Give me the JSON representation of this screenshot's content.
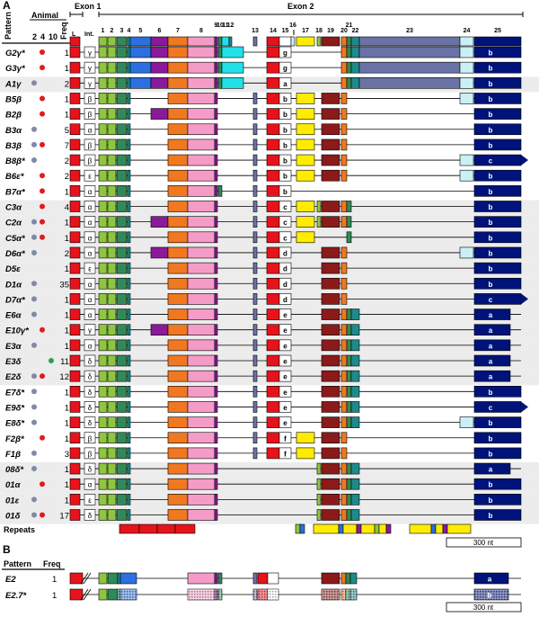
{
  "panel_a": {
    "label": "A",
    "header_pattern": "Pattern",
    "header_animal": "Animal",
    "animal_cols": [
      "2",
      "4",
      "10"
    ],
    "header_freq": "Freq",
    "exon1_label": "Exon 1",
    "exon2_label": "Exon 2",
    "sub_l": "L",
    "sub_int": "Int.",
    "exon_numbers": [
      "1",
      "2",
      "3",
      "4",
      "5",
      "6",
      "7",
      "8",
      "9",
      "10",
      "11",
      "12",
      "13",
      "14",
      "15",
      "16",
      "17",
      "18",
      "19",
      "20",
      "21",
      "22",
      "23",
      "24",
      "25"
    ],
    "repeats_label": "Repeats",
    "scale_label": "300 nt",
    "rows": [
      {
        "name": "G2",
        "suffix": "γ*",
        "animal": [
          0,
          1,
          0
        ],
        "freq": "1",
        "e1": "γ",
        "ex4": "g",
        "ex25": "b",
        "ex": [
          1,
          1,
          1,
          1,
          1,
          1,
          1,
          1,
          1,
          1,
          1,
          0,
          0,
          1,
          1,
          0,
          0,
          0,
          0,
          1,
          1,
          1,
          1,
          1,
          1
        ],
        "long": 1
      },
      {
        "name": "G3",
        "suffix": "γ*",
        "animal": [
          0,
          1,
          0
        ],
        "freq": "1",
        "e1": "γ",
        "ex4": "g",
        "ex25": "b",
        "ex": [
          1,
          1,
          1,
          1,
          1,
          1,
          1,
          1,
          1,
          1,
          1,
          0,
          0,
          1,
          1,
          0,
          0,
          0,
          0,
          1,
          1,
          1,
          1,
          1,
          1
        ],
        "long": 1
      },
      {
        "name": "A1",
        "suffix": "γ",
        "animal": [
          1,
          0,
          0
        ],
        "freq": "2",
        "e1": "γ",
        "ex4": "a",
        "ex25": "b",
        "ex": [
          1,
          1,
          1,
          1,
          1,
          1,
          1,
          1,
          1,
          1,
          1,
          0,
          0,
          1,
          1,
          0,
          0,
          0,
          0,
          1,
          1,
          1,
          1,
          1,
          1
        ],
        "long": 1
      },
      {
        "name": "B5",
        "suffix": "β",
        "animal": [
          0,
          1,
          0
        ],
        "freq": "1",
        "e1": "β",
        "ex4": "b",
        "ex25": "b",
        "ex": [
          1,
          1,
          1,
          1,
          0,
          0,
          1,
          1,
          1,
          0,
          0,
          0,
          1,
          1,
          1,
          0,
          1,
          0,
          1,
          1,
          0,
          0,
          0,
          1,
          1
        ]
      },
      {
        "name": "B2",
        "suffix": "β",
        "animal": [
          0,
          1,
          0
        ],
        "freq": "1",
        "e1": "β",
        "ex4": "b",
        "ex25": "b",
        "ex": [
          1,
          1,
          1,
          1,
          0,
          1,
          1,
          1,
          1,
          0,
          0,
          0,
          1,
          1,
          1,
          0,
          1,
          0,
          1,
          1,
          0,
          0,
          0,
          0,
          1
        ]
      },
      {
        "name": "B3",
        "suffix": "α",
        "animal": [
          1,
          0,
          0
        ],
        "freq": "5",
        "e1": "α",
        "ex4": "b",
        "ex25": "b",
        "ex": [
          1,
          1,
          1,
          1,
          0,
          0,
          1,
          1,
          1,
          0,
          0,
          0,
          1,
          1,
          1,
          0,
          1,
          0,
          1,
          1,
          0,
          0,
          0,
          0,
          1
        ]
      },
      {
        "name": "B3",
        "suffix": "β",
        "animal": [
          1,
          1,
          0
        ],
        "freq": "7",
        "e1": "β",
        "ex4": "b",
        "ex25": "b",
        "ex": [
          1,
          1,
          1,
          1,
          0,
          0,
          1,
          1,
          1,
          0,
          0,
          0,
          1,
          1,
          1,
          0,
          1,
          0,
          1,
          1,
          0,
          0,
          0,
          0,
          1
        ]
      },
      {
        "name": "B8",
        "suffix": "β*",
        "animal": [
          1,
          0,
          0
        ],
        "freq": "2",
        "e1": "β",
        "ex4": "b",
        "ex25": "c",
        "ex": [
          1,
          1,
          1,
          1,
          0,
          0,
          1,
          1,
          1,
          0,
          0,
          0,
          1,
          1,
          1,
          0,
          1,
          0,
          1,
          1,
          0,
          0,
          0,
          1,
          1
        ]
      },
      {
        "name": "B6",
        "suffix": "ε*",
        "animal": [
          0,
          1,
          0
        ],
        "freq": "2",
        "e1": "ε",
        "ex4": "b",
        "ex25": "b",
        "ex": [
          1,
          1,
          1,
          1,
          0,
          0,
          1,
          1,
          1,
          0,
          0,
          0,
          1,
          1,
          1,
          0,
          1,
          0,
          1,
          1,
          0,
          0,
          0,
          1,
          1
        ]
      },
      {
        "name": "B7",
        "suffix": "α*",
        "animal": [
          0,
          1,
          0
        ],
        "freq": "1",
        "e1": "α",
        "ex4": "b",
        "ex25": "b",
        "ex": [
          1,
          1,
          1,
          1,
          0,
          0,
          1,
          1,
          1,
          1,
          0,
          0,
          1,
          1,
          1,
          0,
          0,
          0,
          0,
          0,
          0,
          0,
          0,
          0,
          1
        ]
      },
      {
        "name": "C3",
        "suffix": "α",
        "animal": [
          0,
          1,
          0
        ],
        "freq": "4",
        "e1": "α",
        "ex4": "c",
        "ex25": "b",
        "ex": [
          1,
          1,
          1,
          1,
          0,
          0,
          1,
          1,
          1,
          0,
          0,
          0,
          1,
          1,
          1,
          0,
          1,
          1,
          1,
          1,
          1,
          0,
          0,
          0,
          1
        ]
      },
      {
        "name": "C2",
        "suffix": "α",
        "animal": [
          1,
          1,
          0
        ],
        "freq": "1",
        "e1": "α",
        "ex4": "c",
        "ex25": "b",
        "ex": [
          1,
          1,
          1,
          1,
          0,
          1,
          1,
          1,
          1,
          0,
          0,
          0,
          1,
          1,
          1,
          0,
          1,
          1,
          1,
          1,
          1,
          0,
          0,
          0,
          1
        ]
      },
      {
        "name": "C5",
        "suffix": "α*",
        "animal": [
          1,
          1,
          0
        ],
        "freq": "1",
        "e1": "α",
        "ex4": "c",
        "ex25": "b",
        "ex": [
          1,
          1,
          1,
          1,
          0,
          0,
          1,
          1,
          1,
          0,
          0,
          0,
          1,
          1,
          1,
          0,
          1,
          0,
          0,
          0,
          1,
          0,
          0,
          0,
          1
        ]
      },
      {
        "name": "D6",
        "suffix": "α*",
        "animal": [
          1,
          0,
          0
        ],
        "freq": "2",
        "e1": "α",
        "ex4": "d",
        "ex25": "b",
        "ex": [
          1,
          1,
          1,
          1,
          0,
          1,
          1,
          1,
          1,
          0,
          0,
          0,
          1,
          1,
          1,
          0,
          0,
          0,
          1,
          1,
          0,
          0,
          0,
          1,
          1
        ]
      },
      {
        "name": "D5",
        "suffix": "ε",
        "animal": [
          0,
          0,
          0
        ],
        "freq": "1",
        "e1": "ε",
        "ex4": "d",
        "ex25": "b",
        "ex": [
          1,
          1,
          1,
          1,
          0,
          0,
          1,
          1,
          1,
          0,
          0,
          0,
          1,
          1,
          1,
          0,
          0,
          0,
          1,
          1,
          0,
          0,
          0,
          0,
          1
        ]
      },
      {
        "name": "D1",
        "suffix": "α",
        "animal": [
          1,
          0,
          0
        ],
        "freq": "35",
        "e1": "α",
        "ex4": "d",
        "ex25": "b",
        "ex": [
          1,
          1,
          1,
          1,
          0,
          0,
          1,
          1,
          1,
          0,
          0,
          0,
          1,
          1,
          1,
          0,
          0,
          0,
          1,
          1,
          0,
          0,
          0,
          0,
          1
        ]
      },
      {
        "name": "D7",
        "suffix": "α*",
        "animal": [
          1,
          0,
          0
        ],
        "freq": "1",
        "e1": "α",
        "ex4": "d",
        "ex25": "c",
        "ex": [
          1,
          1,
          1,
          1,
          0,
          0,
          1,
          1,
          1,
          0,
          0,
          0,
          1,
          1,
          1,
          0,
          0,
          0,
          1,
          1,
          0,
          0,
          0,
          0,
          1
        ]
      },
      {
        "name": "E6",
        "suffix": "α",
        "animal": [
          1,
          0,
          0
        ],
        "freq": "1",
        "e1": "α",
        "ex4": "e",
        "ex25": "a",
        "ex": [
          1,
          1,
          1,
          1,
          0,
          0,
          1,
          1,
          1,
          0,
          0,
          0,
          1,
          1,
          1,
          0,
          0,
          0,
          1,
          1,
          1,
          1,
          0,
          0,
          1
        ]
      },
      {
        "name": "E10",
        "suffix": "γ*",
        "animal": [
          0,
          1,
          0
        ],
        "freq": "1",
        "e1": "γ",
        "ex4": "e",
        "ex25": "a",
        "ex": [
          1,
          1,
          1,
          1,
          0,
          1,
          1,
          1,
          1,
          0,
          0,
          0,
          1,
          1,
          1,
          0,
          0,
          0,
          1,
          1,
          1,
          1,
          0,
          0,
          1
        ]
      },
      {
        "name": "E3",
        "suffix": "α",
        "animal": [
          1,
          0,
          0
        ],
        "freq": "1",
        "e1": "α",
        "ex4": "e",
        "ex25": "a",
        "ex": [
          1,
          1,
          1,
          1,
          0,
          0,
          1,
          1,
          1,
          0,
          0,
          0,
          1,
          1,
          1,
          0,
          0,
          0,
          1,
          1,
          1,
          1,
          0,
          0,
          1
        ]
      },
      {
        "name": "E3",
        "suffix": "δ",
        "animal": [
          0,
          0,
          1
        ],
        "freq": "11",
        "e1": "δ",
        "ex4": "e",
        "ex25": "a",
        "ex": [
          1,
          1,
          1,
          1,
          0,
          0,
          1,
          1,
          1,
          0,
          0,
          0,
          1,
          1,
          1,
          0,
          0,
          0,
          1,
          1,
          1,
          1,
          0,
          0,
          1
        ]
      },
      {
        "name": "E2",
        "suffix": "δ",
        "animal": [
          1,
          1,
          0
        ],
        "freq": "12",
        "e1": "δ",
        "ex4": "e",
        "ex25": "a",
        "ex": [
          1,
          1,
          1,
          1,
          0,
          0,
          1,
          1,
          1,
          0,
          0,
          0,
          1,
          1,
          1,
          0,
          0,
          0,
          1,
          1,
          1,
          1,
          0,
          0,
          1
        ]
      },
      {
        "name": "E7",
        "suffix": "δ*",
        "animal": [
          1,
          0,
          0
        ],
        "freq": "1",
        "e1": "δ",
        "ex4": "e",
        "ex25": "b",
        "ex": [
          1,
          1,
          1,
          1,
          0,
          0,
          1,
          1,
          1,
          0,
          0,
          0,
          1,
          1,
          1,
          0,
          0,
          0,
          1,
          1,
          1,
          1,
          0,
          0,
          1
        ]
      },
      {
        "name": "E9",
        "suffix": "δ*",
        "animal": [
          1,
          0,
          0
        ],
        "freq": "1",
        "e1": "δ",
        "ex4": "e",
        "ex25": "c",
        "ex": [
          1,
          1,
          1,
          1,
          0,
          0,
          1,
          1,
          1,
          0,
          0,
          0,
          1,
          1,
          1,
          0,
          0,
          0,
          1,
          1,
          1,
          1,
          0,
          0,
          1
        ]
      },
      {
        "name": "E8",
        "suffix": "δ*",
        "animal": [
          1,
          0,
          0
        ],
        "freq": "1",
        "e1": "δ",
        "ex4": "e",
        "ex25": "b",
        "ex": [
          1,
          1,
          1,
          1,
          0,
          0,
          1,
          1,
          1,
          0,
          0,
          0,
          1,
          1,
          1,
          0,
          0,
          0,
          1,
          1,
          1,
          1,
          0,
          1,
          1
        ]
      },
      {
        "name": "F2",
        "suffix": "β*",
        "animal": [
          0,
          1,
          0
        ],
        "freq": "1",
        "e1": "β",
        "ex4": "f",
        "ex25": "b",
        "ex": [
          1,
          1,
          1,
          1,
          0,
          0,
          1,
          1,
          1,
          0,
          0,
          0,
          1,
          1,
          1,
          0,
          1,
          0,
          1,
          1,
          0,
          0,
          0,
          0,
          1
        ]
      },
      {
        "name": "F1",
        "suffix": "β",
        "animal": [
          1,
          0,
          0
        ],
        "freq": "3",
        "e1": "β",
        "ex4": "f",
        "ex25": "b",
        "ex": [
          1,
          1,
          1,
          1,
          0,
          0,
          1,
          1,
          1,
          0,
          0,
          0,
          1,
          1,
          1,
          0,
          1,
          0,
          1,
          1,
          0,
          0,
          0,
          0,
          1
        ]
      },
      {
        "name": "08",
        "suffix": "δ*",
        "animal": [
          1,
          0,
          0
        ],
        "freq": "1",
        "e1": "δ",
        "ex4": "",
        "ex25": "a",
        "ex": [
          1,
          1,
          1,
          1,
          0,
          0,
          1,
          1,
          1,
          0,
          0,
          0,
          0,
          0,
          0,
          0,
          0,
          1,
          1,
          1,
          1,
          1,
          0,
          0,
          1
        ]
      },
      {
        "name": "01",
        "suffix": "α",
        "animal": [
          0,
          1,
          0
        ],
        "freq": "1",
        "e1": "α",
        "ex4": "",
        "ex25": "b",
        "ex": [
          1,
          1,
          1,
          1,
          0,
          0,
          1,
          1,
          1,
          0,
          0,
          0,
          0,
          0,
          0,
          0,
          0,
          1,
          1,
          1,
          1,
          1,
          0,
          0,
          1
        ]
      },
      {
        "name": "01",
        "suffix": "ε",
        "animal": [
          1,
          0,
          0
        ],
        "freq": "1",
        "e1": "ε",
        "ex4": "",
        "ex25": "b",
        "ex": [
          1,
          1,
          1,
          1,
          0,
          0,
          1,
          1,
          1,
          0,
          0,
          0,
          0,
          0,
          0,
          0,
          0,
          1,
          1,
          1,
          1,
          1,
          0,
          0,
          1
        ]
      },
      {
        "name": "01",
        "suffix": "δ",
        "animal": [
          1,
          1,
          0
        ],
        "freq": "17",
        "e1": "δ",
        "ex4": "",
        "ex25": "b",
        "ex": [
          1,
          1,
          1,
          1,
          0,
          0,
          1,
          1,
          1,
          0,
          0,
          0,
          0,
          0,
          0,
          0,
          0,
          1,
          1,
          1,
          1,
          1,
          0,
          0,
          1
        ]
      }
    ]
  },
  "panel_b": {
    "label": "B",
    "header_pattern": "Pattern",
    "header_freq": "Freq",
    "scale_label": "300 nt",
    "rows": [
      {
        "name": "E2",
        "freq": "1",
        "ex25": "a",
        "hatched": false
      },
      {
        "name": "E2.7*",
        "freq": "1",
        "ex25": "b",
        "hatched": true
      }
    ]
  },
  "colors": {
    "exon_red": "#e8121b",
    "green_light": "#8ec63f",
    "green_dark": "#2e8b57",
    "teal": "#1f8a8a",
    "blue": "#2b6fe0",
    "purple": "#8b1a9a",
    "orange": "#f07820",
    "pink": "#f59bc7",
    "cyan": "#22e0e8",
    "slate": "#6a72a6",
    "yellow": "#ffec00",
    "maroon": "#8b1a1a",
    "navy": "#00137a",
    "pale_blue": "#c8f0f5",
    "animal_green": "#2e9e5e",
    "animal_red": "#e21b1b",
    "animal_slate": "#7f8aa8",
    "row_shade": "#ececec"
  }
}
